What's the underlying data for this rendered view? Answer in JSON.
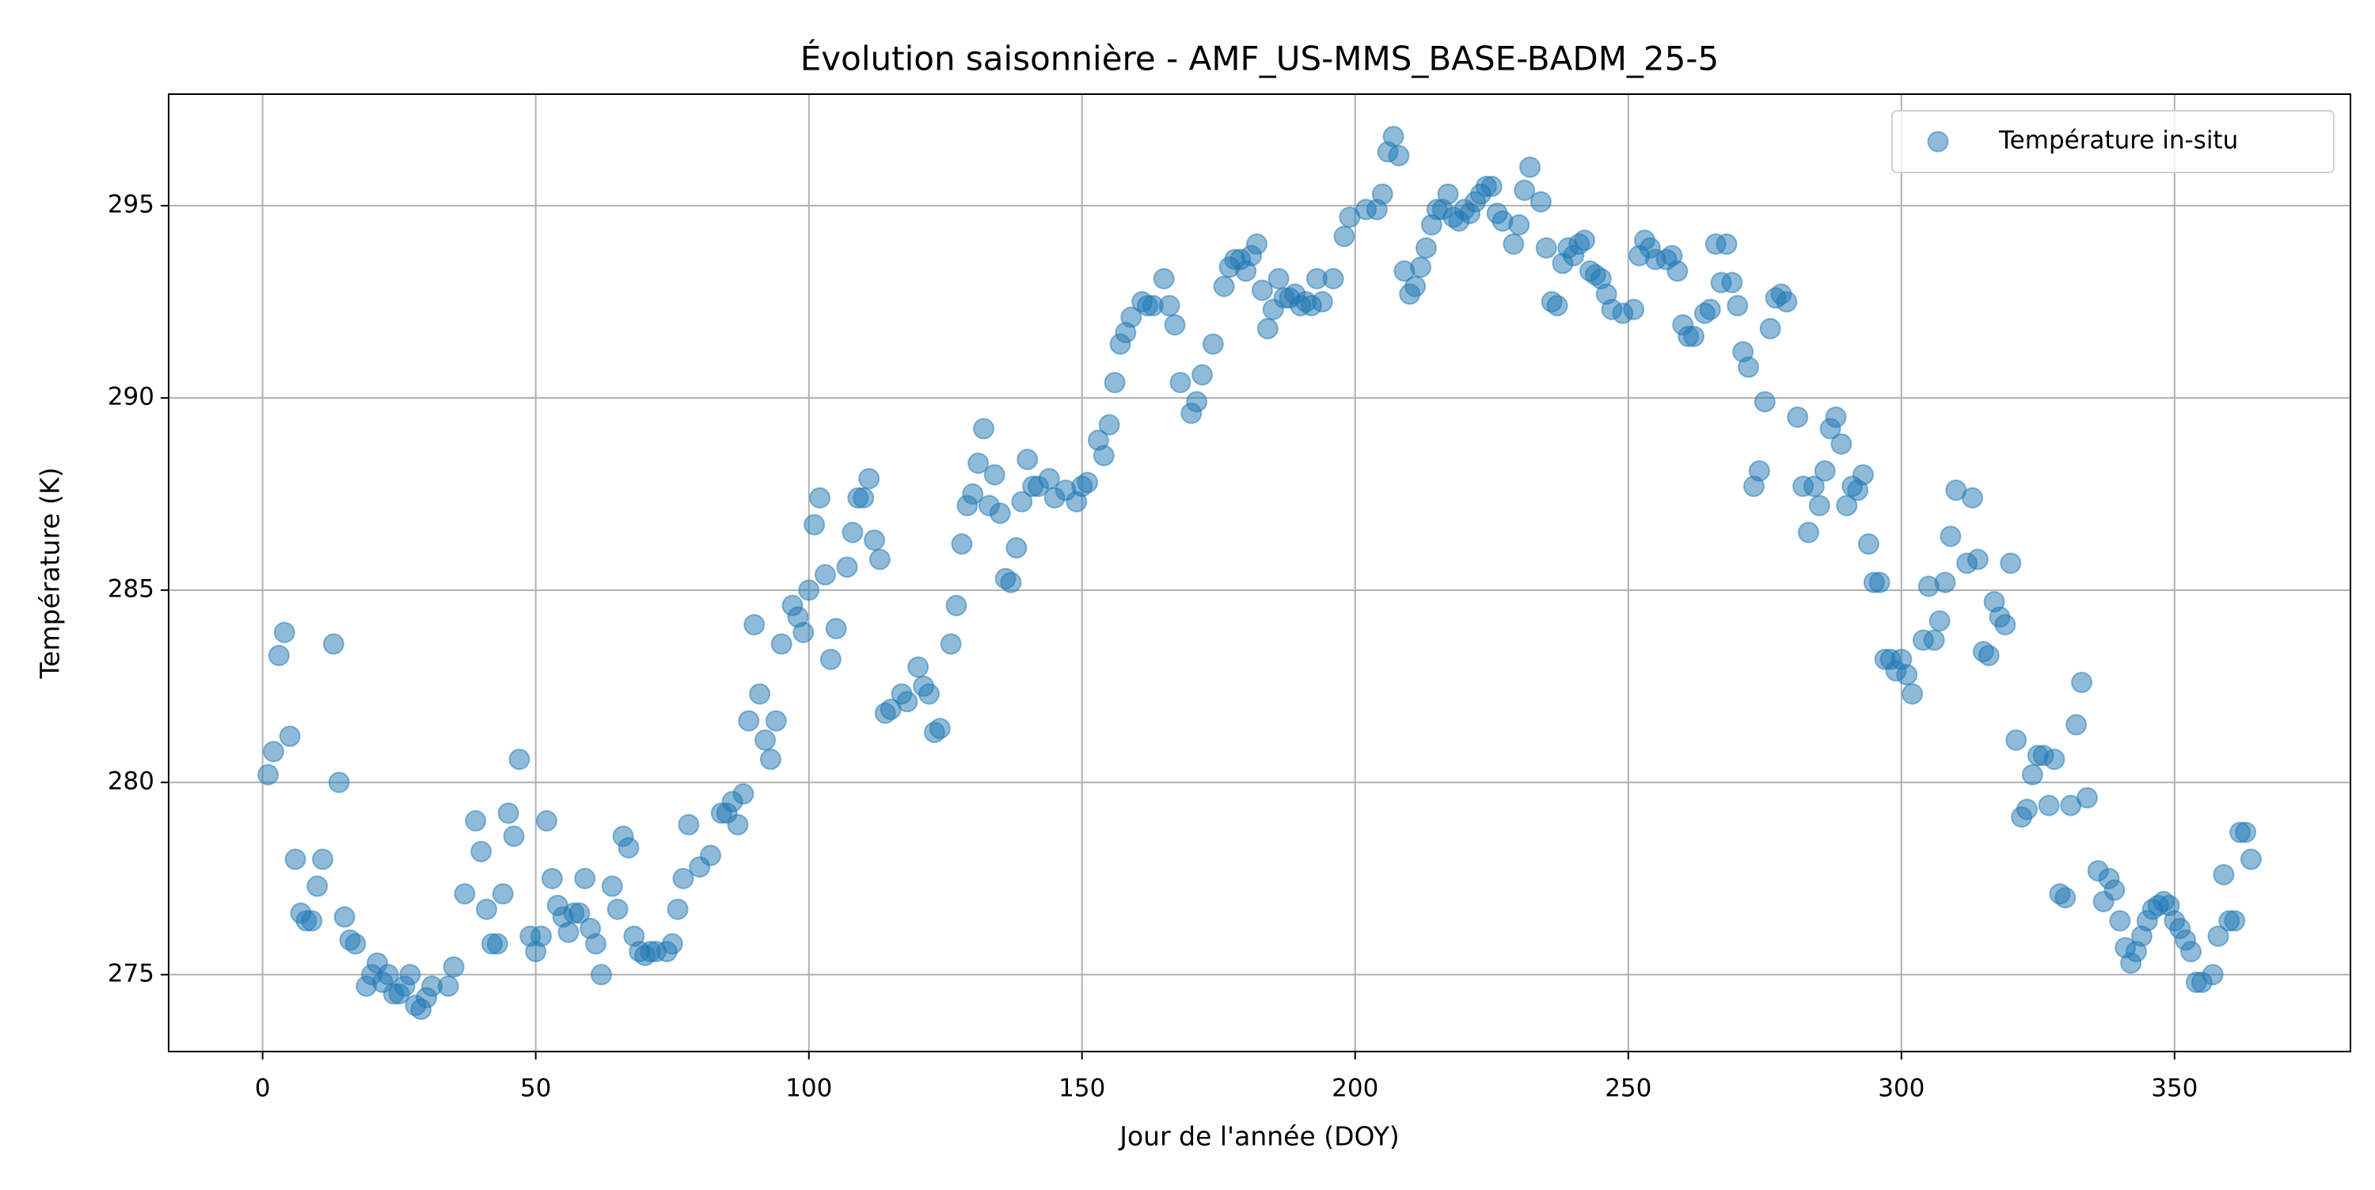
{
  "chart_data": {
    "type": "scatter",
    "title": "Évolution saisonnière - AMF_US-MMS_BASE-BADM_25-5",
    "x_label": "Jour de l'année (DOY)",
    "y_label": "Température (K)",
    "x": [
      1,
      2,
      3,
      4,
      5,
      6,
      7,
      8,
      9,
      10,
      11,
      13,
      14,
      15,
      16,
      17,
      19,
      20,
      21,
      22,
      23,
      24,
      25,
      26,
      27,
      28,
      29,
      30,
      31,
      34,
      35,
      37,
      39,
      40,
      41,
      42,
      43,
      44,
      45,
      46,
      47,
      49,
      50,
      51,
      52,
      53,
      54,
      55,
      56,
      57,
      58,
      59,
      60,
      61,
      62,
      64,
      65,
      66,
      67,
      68,
      69,
      70,
      71,
      72,
      74,
      75,
      76,
      77,
      78,
      80,
      82,
      84,
      85,
      86,
      87,
      88,
      89,
      90,
      91,
      92,
      93,
      94,
      95,
      97,
      98,
      99,
      100,
      101,
      102,
      103,
      104,
      105,
      107,
      108,
      109,
      110,
      111,
      112,
      113,
      114,
      115,
      117,
      118,
      120,
      121,
      122,
      123,
      124,
      126,
      127,
      128,
      129,
      130,
      131,
      132,
      133,
      134,
      135,
      136,
      137,
      138,
      139,
      140,
      141,
      142,
      144,
      145,
      147,
      149,
      150,
      151,
      153,
      154,
      155,
      156,
      157,
      158,
      159,
      161,
      162,
      163,
      165,
      166,
      167,
      168,
      170,
      171,
      172,
      174,
      176,
      177,
      178,
      179,
      180,
      181,
      182,
      183,
      184,
      185,
      186,
      187,
      188,
      189,
      190,
      191,
      192,
      193,
      194,
      196,
      198,
      199,
      202,
      204,
      205,
      206,
      207,
      208,
      209,
      210,
      211,
      212,
      213,
      214,
      215,
      216,
      217,
      218,
      219,
      220,
      221,
      222,
      223,
      224,
      225,
      226,
      227,
      229,
      230,
      231,
      232,
      234,
      235,
      236,
      237,
      238,
      239,
      240,
      241,
      242,
      243,
      244,
      245,
      246,
      247,
      249,
      251,
      252,
      253,
      254,
      255,
      257,
      258,
      259,
      260,
      261,
      262,
      264,
      265,
      266,
      267,
      268,
      269,
      270,
      271,
      272,
      273,
      274,
      275,
      276,
      277,
      278,
      279,
      281,
      282,
      283,
      284,
      285,
      286,
      287,
      288,
      289,
      290,
      291,
      292,
      293,
      294,
      295,
      296,
      297,
      298,
      299,
      300,
      301,
      302,
      304,
      305,
      306,
      307,
      308,
      309,
      310,
      312,
      313,
      314,
      315,
      316,
      317,
      318,
      319,
      320,
      321,
      322,
      323,
      324,
      325,
      326,
      327,
      328,
      329,
      330,
      331,
      332,
      333,
      334,
      336,
      337,
      338,
      339,
      340,
      341,
      342,
      343,
      344,
      345,
      346,
      347,
      348,
      349,
      350,
      351,
      352,
      353,
      354,
      355,
      357,
      358,
      359,
      360,
      361,
      362,
      363,
      364
    ],
    "series": [
      {
        "name": "Température in-situ",
        "color": "#1f77b4",
        "values": [
          280.2,
          280.8,
          283.3,
          283.9,
          281.2,
          278.0,
          276.6,
          276.4,
          276.4,
          277.3,
          278.0,
          283.6,
          280.0,
          276.5,
          275.9,
          275.8,
          274.7,
          275.0,
          275.3,
          274.8,
          275.0,
          274.5,
          274.5,
          274.7,
          275.0,
          274.2,
          274.1,
          274.4,
          274.7,
          274.7,
          275.2,
          277.1,
          279.0,
          278.2,
          276.7,
          275.8,
          275.8,
          277.1,
          279.2,
          278.6,
          280.6,
          276.0,
          275.6,
          276.0,
          279.0,
          277.5,
          276.8,
          276.5,
          276.1,
          276.6,
          276.6,
          277.5,
          276.2,
          275.8,
          275.0,
          277.3,
          276.7,
          278.6,
          278.3,
          276.0,
          275.6,
          275.5,
          275.6,
          275.6,
          275.6,
          275.8,
          276.7,
          277.5,
          278.9,
          277.8,
          278.1,
          279.2,
          279.2,
          279.5,
          278.9,
          279.7,
          281.6,
          284.1,
          282.3,
          281.1,
          280.6,
          281.6,
          283.6,
          284.6,
          284.3,
          283.9,
          285.0,
          286.7,
          287.4,
          285.4,
          283.2,
          284.0,
          285.6,
          286.5,
          287.4,
          287.4,
          287.9,
          286.3,
          285.8,
          281.8,
          281.9,
          282.3,
          282.1,
          283.0,
          282.5,
          282.3,
          281.3,
          281.4,
          283.6,
          284.6,
          286.2,
          287.2,
          287.5,
          288.3,
          289.2,
          287.2,
          288.0,
          287.0,
          285.3,
          285.2,
          286.1,
          287.3,
          288.4,
          287.7,
          287.7,
          287.9,
          287.4,
          287.6,
          287.3,
          287.7,
          287.8,
          288.9,
          288.5,
          289.3,
          290.4,
          291.4,
          291.7,
          292.1,
          292.5,
          292.4,
          292.4,
          293.1,
          292.4,
          291.9,
          290.4,
          289.6,
          289.9,
          290.6,
          291.4,
          292.9,
          293.4,
          293.6,
          293.6,
          293.3,
          293.7,
          294.0,
          292.8,
          291.8,
          292.3,
          293.1,
          292.6,
          292.6,
          292.7,
          292.4,
          292.5,
          292.4,
          293.1,
          292.5,
          293.1,
          294.2,
          294.7,
          294.9,
          294.9,
          295.3,
          296.4,
          296.8,
          296.3,
          293.3,
          292.7,
          292.9,
          293.4,
          293.9,
          294.5,
          294.9,
          294.9,
          295.3,
          294.7,
          294.6,
          294.9,
          294.8,
          295.1,
          295.3,
          295.5,
          295.5,
          294.8,
          294.6,
          294.0,
          294.5,
          295.4,
          296.0,
          295.1,
          293.9,
          292.5,
          292.4,
          293.5,
          293.9,
          293.7,
          294.0,
          294.1,
          293.3,
          293.2,
          293.1,
          292.7,
          292.3,
          292.2,
          292.3,
          293.7,
          294.1,
          293.9,
          293.6,
          293.6,
          293.7,
          293.3,
          291.9,
          291.6,
          291.6,
          292.2,
          292.3,
          294.0,
          293.0,
          294.0,
          293.0,
          292.4,
          291.2,
          290.8,
          287.7,
          288.1,
          289.9,
          291.8,
          292.6,
          292.7,
          292.5,
          289.5,
          287.7,
          286.5,
          287.7,
          287.2,
          288.1,
          289.2,
          289.5,
          288.8,
          287.2,
          287.7,
          287.6,
          288.0,
          286.2,
          285.2,
          285.2,
          283.2,
          283.2,
          282.9,
          283.2,
          282.8,
          282.3,
          283.7,
          285.1,
          283.7,
          284.2,
          285.2,
          286.4,
          287.6,
          285.7,
          287.4,
          285.8,
          283.4,
          283.3,
          284.7,
          284.3,
          284.1,
          285.7,
          281.1,
          279.1,
          279.3,
          280.2,
          280.7,
          280.7,
          279.4,
          280.6,
          277.1,
          277.0,
          279.4,
          281.5,
          282.6,
          279.6,
          277.7,
          276.9,
          277.5,
          277.2,
          276.4,
          275.7,
          275.3,
          275.6,
          276.0,
          276.4,
          276.7,
          276.8,
          276.9,
          276.8,
          276.4,
          276.2,
          275.9,
          275.6,
          274.8,
          274.8,
          275.0,
          276.0,
          277.6,
          276.4,
          276.4,
          278.7,
          278.7,
          278.0
        ]
      }
    ],
    "xlim": [
      -17.2,
      382.2
    ],
    "ylim": [
      273.0,
      297.9
    ],
    "xticks": [
      0,
      50,
      100,
      150,
      200,
      250,
      300,
      350
    ],
    "yticks": [
      275,
      280,
      285,
      290,
      295
    ],
    "grid": true,
    "legend": "upper right",
    "marker_alpha": 0.5
  }
}
